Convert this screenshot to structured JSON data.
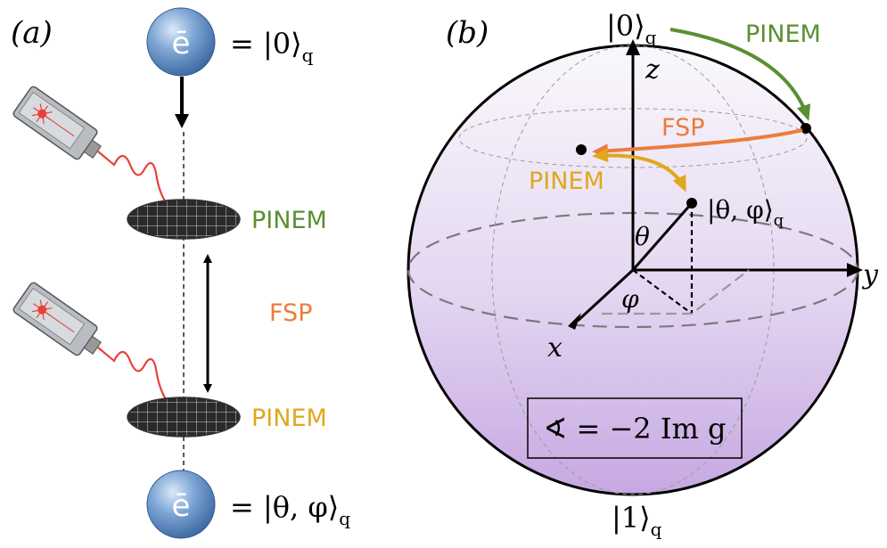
{
  "panel_a": {
    "label": "(a)",
    "electron_symbol": "ē",
    "top_state": "= |0⟩",
    "top_state_sub": "q",
    "bottom_state": "= |θ, φ⟩",
    "bottom_state_sub": "q",
    "pinem_top": "PINEM",
    "fsp": "FSP",
    "pinem_bottom": "PINEM"
  },
  "panel_b": {
    "label": "(b)",
    "north_state": "|0⟩",
    "north_sub": "q",
    "south_state": "|1⟩",
    "south_sub": "q",
    "state_label": "|θ, φ⟩",
    "state_sub": "q",
    "axis_x": "x",
    "axis_y": "y",
    "axis_z": "z",
    "theta": "θ",
    "phi": "φ",
    "pinem_green": "PINEM",
    "fsp": "FSP",
    "pinem_yellow": "PINEM",
    "formula": "∢ = −2 Im g"
  },
  "colors": {
    "green": "#5a8f32",
    "orange": "#ec7c3d",
    "yellow": "#dfa81c",
    "sphere_top": "#f2eef8",
    "sphere_bottom": "#c9aee3",
    "electron": "#6f9bd0"
  }
}
